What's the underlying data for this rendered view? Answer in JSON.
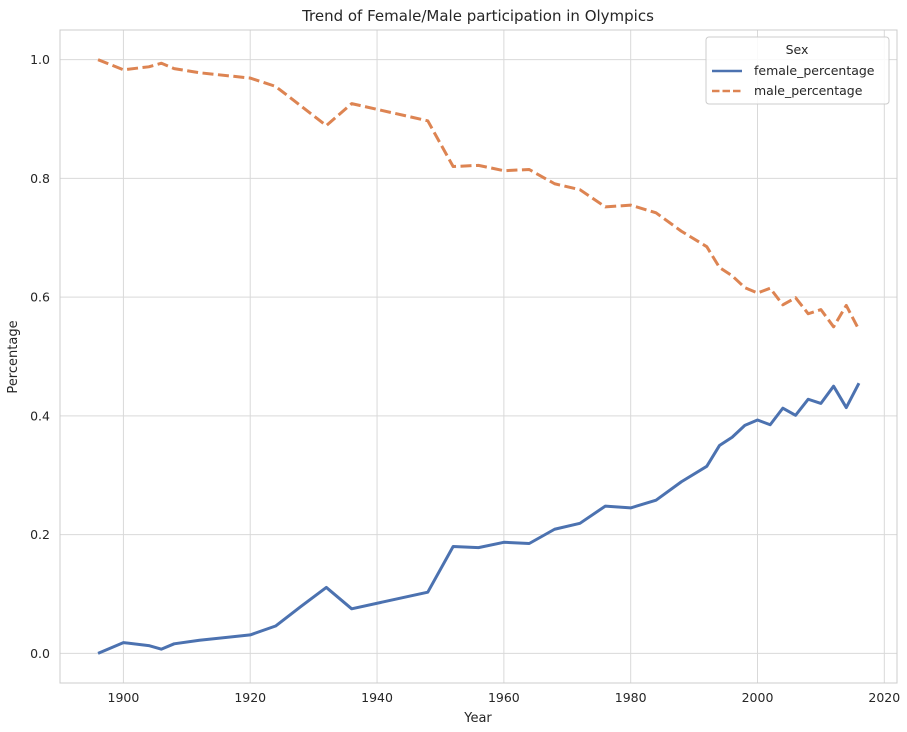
{
  "chart_data": {
    "type": "line",
    "title": "Trend of Female/Male participation in Olympics",
    "xlabel": "Year",
    "ylabel": "Percentage",
    "xlim": [
      1890,
      2022
    ],
    "ylim": [
      -0.05,
      1.05
    ],
    "x_ticks": [
      "1900",
      "1920",
      "1940",
      "1960",
      "1980",
      "2000",
      "2020"
    ],
    "y_ticks": [
      "0.0",
      "0.2",
      "0.4",
      "0.6",
      "0.8",
      "1.0"
    ],
    "grid": true,
    "legend": {
      "title": "Sex",
      "placement": "top-right"
    },
    "colors": {
      "female": "#4c72b0",
      "male": "#dd8452",
      "grid": "#d9d9d9",
      "axes_edge": "#cccccc"
    },
    "series": [
      {
        "name": "female_percentage",
        "style": "solid",
        "points": [
          [
            1896,
            0.0
          ],
          [
            1900,
            0.018
          ],
          [
            1904,
            0.013
          ],
          [
            1906,
            0.007
          ],
          [
            1908,
            0.016
          ],
          [
            1912,
            0.022
          ],
          [
            1920,
            0.031
          ],
          [
            1924,
            0.046
          ],
          [
            1928,
            0.079
          ],
          [
            1932,
            0.111
          ],
          [
            1936,
            0.075
          ],
          [
            1948,
            0.103
          ],
          [
            1952,
            0.18
          ],
          [
            1956,
            0.178
          ],
          [
            1960,
            0.187
          ],
          [
            1964,
            0.185
          ],
          [
            1968,
            0.209
          ],
          [
            1972,
            0.219
          ],
          [
            1976,
            0.248
          ],
          [
            1980,
            0.245
          ],
          [
            1984,
            0.258
          ],
          [
            1988,
            0.289
          ],
          [
            1992,
            0.315
          ],
          [
            1994,
            0.35
          ],
          [
            1996,
            0.364
          ],
          [
            1998,
            0.384
          ],
          [
            2000,
            0.393
          ],
          [
            2002,
            0.385
          ],
          [
            2004,
            0.413
          ],
          [
            2006,
            0.401
          ],
          [
            2008,
            0.428
          ],
          [
            2010,
            0.421
          ],
          [
            2012,
            0.45
          ],
          [
            2014,
            0.414
          ],
          [
            2016,
            0.455
          ]
        ]
      },
      {
        "name": "male_percentage",
        "style": "dashed",
        "points": [
          [
            1896,
            1.0
          ],
          [
            1900,
            0.983
          ],
          [
            1904,
            0.988
          ],
          [
            1906,
            0.994
          ],
          [
            1908,
            0.985
          ],
          [
            1912,
            0.978
          ],
          [
            1920,
            0.969
          ],
          [
            1924,
            0.955
          ],
          [
            1928,
            0.922
          ],
          [
            1932,
            0.889
          ],
          [
            1936,
            0.926
          ],
          [
            1948,
            0.897
          ],
          [
            1952,
            0.82
          ],
          [
            1956,
            0.822
          ],
          [
            1960,
            0.813
          ],
          [
            1964,
            0.815
          ],
          [
            1968,
            0.791
          ],
          [
            1972,
            0.781
          ],
          [
            1976,
            0.752
          ],
          [
            1980,
            0.755
          ],
          [
            1984,
            0.742
          ],
          [
            1988,
            0.711
          ],
          [
            1992,
            0.685
          ],
          [
            1994,
            0.65
          ],
          [
            1996,
            0.636
          ],
          [
            1998,
            0.616
          ],
          [
            2000,
            0.607
          ],
          [
            2002,
            0.615
          ],
          [
            2004,
            0.587
          ],
          [
            2006,
            0.599
          ],
          [
            2008,
            0.572
          ],
          [
            2010,
            0.579
          ],
          [
            2012,
            0.55
          ],
          [
            2014,
            0.586
          ],
          [
            2016,
            0.545
          ]
        ]
      }
    ]
  }
}
